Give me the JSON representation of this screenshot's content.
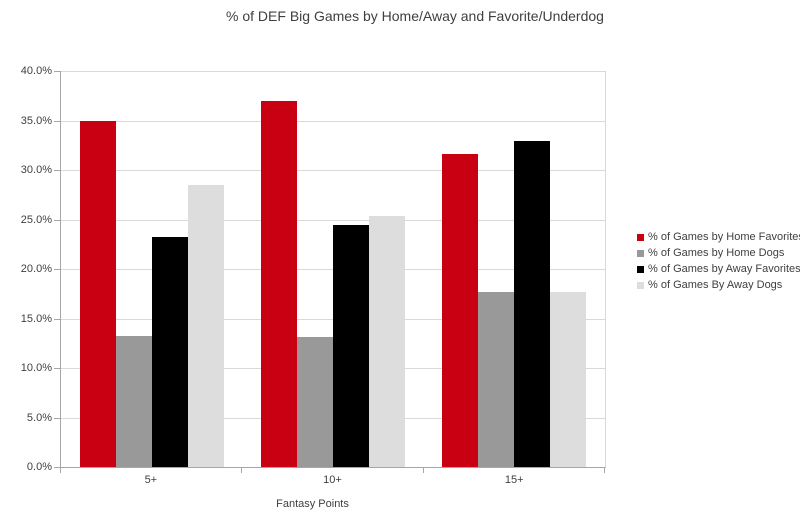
{
  "chart_data": {
    "type": "bar",
    "title": "% of DEF Big Games by Home/Away and Favorite/Underdog",
    "xlabel": "Fantasy Points",
    "ylabel": "",
    "ylim": [
      0,
      40
    ],
    "y_tick_labels": [
      "0.0%",
      "5.0%",
      "10.0%",
      "15.0%",
      "20.0%",
      "25.0%",
      "30.0%",
      "35.0%",
      "40.0%"
    ],
    "categories": [
      "5+",
      "10+",
      "15+"
    ],
    "series": [
      {
        "name": "% of Games by Home Favorites",
        "color": "#c80011",
        "values": [
          35.0,
          37.0,
          31.6
        ]
      },
      {
        "name": "% of Games by Home Dogs",
        "color": "#999999",
        "values": [
          13.2,
          13.1,
          17.7
        ]
      },
      {
        "name": "% of Games by Away Favorites",
        "color": "#000000",
        "values": [
          23.2,
          24.4,
          32.9
        ]
      },
      {
        "name": "% of Games By Away Dogs",
        "color": "#dddddd",
        "values": [
          28.5,
          25.4,
          17.7
        ]
      }
    ],
    "legend_position": "right",
    "grid": true
  },
  "colors": {
    "gridline": "#d9d9d9",
    "axis": "#a6a6a6",
    "text": "#3f3f3f",
    "background": "#ffffff"
  }
}
